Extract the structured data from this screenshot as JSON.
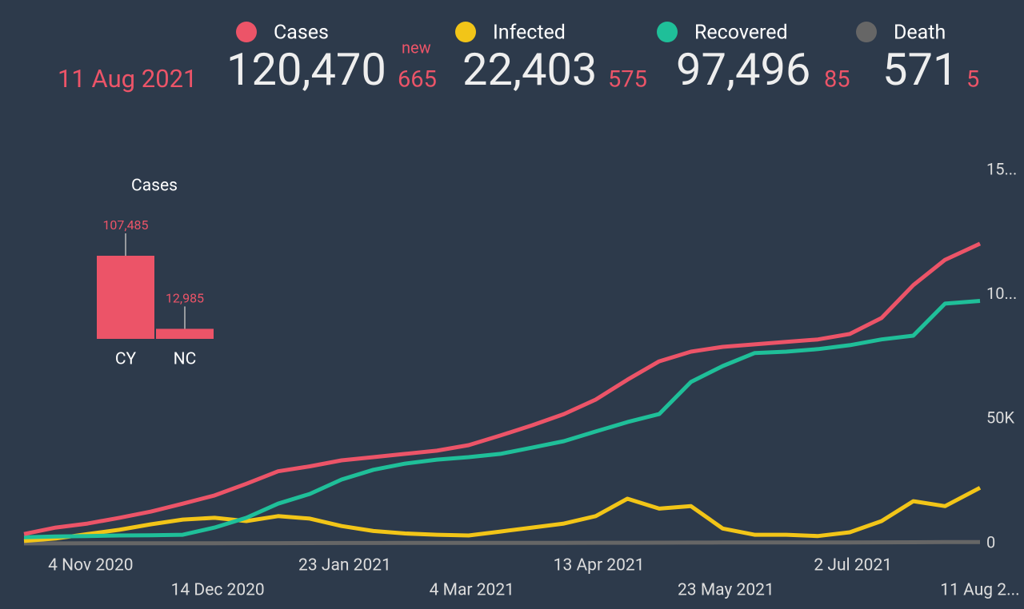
{
  "header": {
    "date": "11 Aug 2021",
    "new_label": "new",
    "stats": [
      {
        "value": "120,470",
        "new": "665"
      },
      {
        "value": "22,403",
        "new": "575"
      },
      {
        "value": "97,496",
        "new": "85"
      },
      {
        "value": "571",
        "new": "5"
      }
    ]
  },
  "chart_data": [
    {
      "type": "bar",
      "title": "Cases",
      "categories": [
        "CY",
        "NC"
      ],
      "values": [
        107485,
        12985
      ],
      "value_labels": [
        "107,485",
        "12,985"
      ],
      "color": "#ec5468"
    },
    {
      "type": "line",
      "x": [
        "2020-10-14",
        "2020-10-24",
        "2020-11-03",
        "2020-11-13",
        "2020-11-23",
        "2020-12-03",
        "2020-12-13",
        "2020-12-23",
        "2021-01-02",
        "2021-01-12",
        "2021-01-22",
        "2021-02-01",
        "2021-02-11",
        "2021-02-21",
        "2021-03-03",
        "2021-03-13",
        "2021-03-23",
        "2021-04-02",
        "2021-04-12",
        "2021-04-22",
        "2021-05-02",
        "2021-05-12",
        "2021-05-22",
        "2021-06-01",
        "2021-06-11",
        "2021-06-21",
        "2021-07-01",
        "2021-07-11",
        "2021-07-21",
        "2021-07-31",
        "2021-08-11"
      ],
      "series": [
        {
          "name": "Cases",
          "color": "#ec5468",
          "values": [
            3800,
            6400,
            8000,
            10300,
            12800,
            16000,
            19300,
            24000,
            29000,
            31000,
            33400,
            34700,
            36000,
            37300,
            39500,
            43400,
            47500,
            52000,
            57800,
            65800,
            73200,
            77100,
            79000,
            80000,
            81000,
            82000,
            84200,
            90600,
            103800,
            114000,
            120470
          ]
        },
        {
          "name": "Infected",
          "color": "#f2c518",
          "values": [
            1000,
            2000,
            3800,
            5500,
            7700,
            9600,
            10300,
            9000,
            11000,
            10000,
            7000,
            5000,
            4000,
            3500,
            3200,
            4800,
            6400,
            8000,
            11000,
            18000,
            14000,
            15000,
            6000,
            3500,
            3500,
            3000,
            4500,
            9000,
            17000,
            15000,
            22403
          ]
        },
        {
          "name": "Recovered",
          "color": "#1fbf99",
          "values": [
            2500,
            2800,
            3000,
            3200,
            3300,
            3500,
            6400,
            10300,
            16000,
            19900,
            25700,
            29600,
            32100,
            33700,
            34700,
            36000,
            38500,
            41100,
            45000,
            48800,
            52000,
            64900,
            71300,
            76500,
            77100,
            78100,
            79700,
            82000,
            83500,
            96400,
            97496
          ]
        },
        {
          "name": "Death",
          "color": "#666666",
          "values": [
            30,
            40,
            50,
            60,
            70,
            80,
            100,
            120,
            140,
            160,
            180,
            200,
            210,
            220,
            230,
            240,
            250,
            260,
            280,
            300,
            330,
            360,
            380,
            390,
            400,
            410,
            420,
            440,
            480,
            530,
            571
          ]
        }
      ],
      "xlim": [
        "2020-10-14",
        "2021-08-11"
      ],
      "xticks": [
        {
          "value": "2020-11-04",
          "label": "4 Nov 2020"
        },
        {
          "value": "2020-12-14",
          "label": "14 Dec 2020"
        },
        {
          "value": "2021-01-23",
          "label": "23 Jan 2021"
        },
        {
          "value": "2021-03-04",
          "label": "4 Mar 2021"
        },
        {
          "value": "2021-04-13",
          "label": "13 Apr 2021"
        },
        {
          "value": "2021-05-23",
          "label": "23 May 2021"
        },
        {
          "value": "2021-07-02",
          "label": "2 Jul 2021"
        },
        {
          "value": "2021-08-11",
          "label": "11 Aug 2..."
        }
      ],
      "ylim": [
        0,
        150000
      ],
      "yticks": [
        0,
        {
          "value": 50000,
          "label": "50K"
        },
        {
          "value": 100000,
          "label": "10..."
        },
        {
          "value": 150000,
          "label": "15..."
        }
      ]
    }
  ]
}
